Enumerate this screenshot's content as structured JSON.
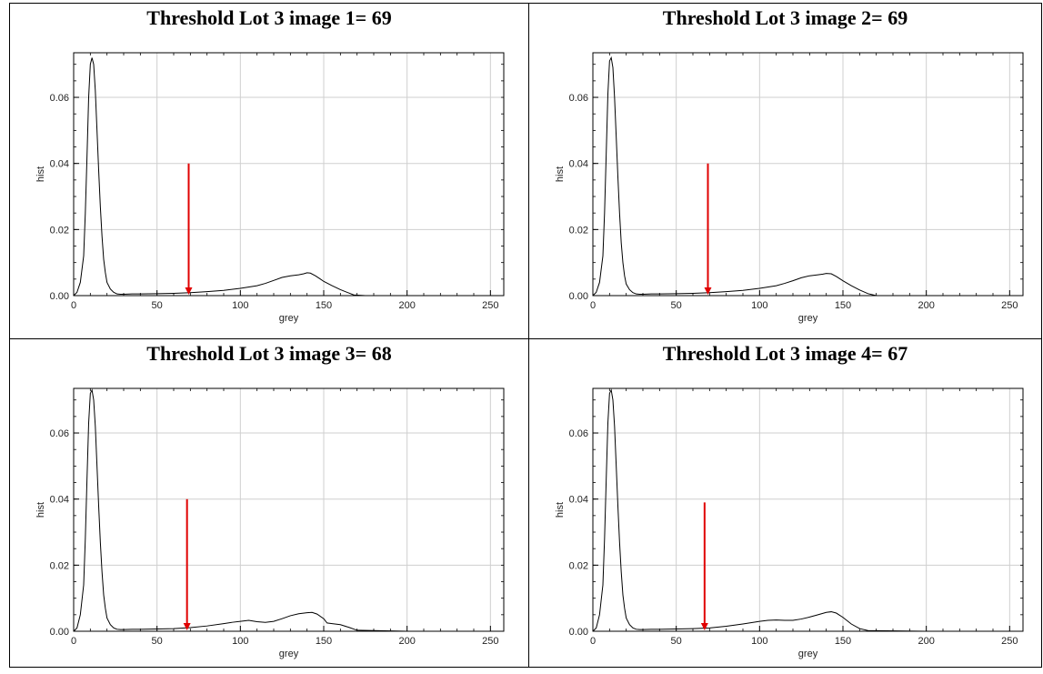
{
  "chart_data": [
    {
      "type": "line",
      "title": "Threshold Lot 3 image 1= 69",
      "xlabel": "grey",
      "ylabel": "hist",
      "xlim": [
        0,
        258
      ],
      "ylim": [
        0,
        0.0735
      ],
      "xticks": [
        "0",
        "50",
        "100",
        "150",
        "200",
        "250"
      ],
      "yticks": [
        "0.00",
        "0.02",
        "0.04",
        "0.06"
      ],
      "grid": true,
      "threshold_arrow": {
        "x": 69,
        "from_y": 0.04,
        "to_y": 0.0
      },
      "series": [
        {
          "x": [
            0,
            2,
            4,
            6,
            7,
            8,
            9,
            10,
            11,
            12,
            13,
            14,
            15,
            16,
            17,
            18,
            19,
            20,
            22,
            24,
            26,
            28,
            30,
            35,
            40,
            50,
            60,
            70,
            80,
            90,
            100,
            110,
            115,
            120,
            125,
            130,
            135,
            138,
            140,
            142,
            145,
            148,
            150,
            155,
            160,
            165,
            168,
            175,
            200,
            258
          ],
          "y": [
            0,
            0.001,
            0.004,
            0.012,
            0.025,
            0.042,
            0.06,
            0.07,
            0.072,
            0.07,
            0.062,
            0.05,
            0.038,
            0.027,
            0.018,
            0.011,
            0.007,
            0.004,
            0.002,
            0.001,
            0.0005,
            0.0004,
            0.0004,
            0.0005,
            0.0005,
            0.0006,
            0.0007,
            0.0009,
            0.0012,
            0.0016,
            0.0022,
            0.003,
            0.0037,
            0.0046,
            0.0055,
            0.006,
            0.0063,
            0.0066,
            0.0069,
            0.0068,
            0.006,
            0.005,
            0.0043,
            0.003,
            0.0018,
            0.0008,
            0.0002,
            0,
            0,
            0
          ]
        }
      ]
    },
    {
      "type": "line",
      "title": "Threshold Lot 3 image 2= 69",
      "xlabel": "grey",
      "ylabel": "hist",
      "xlim": [
        0,
        258
      ],
      "ylim": [
        0,
        0.0735
      ],
      "xticks": [
        "0",
        "50",
        "100",
        "150",
        "200",
        "250"
      ],
      "yticks": [
        "0.00",
        "0.02",
        "0.04",
        "0.06"
      ],
      "grid": true,
      "threshold_arrow": {
        "x": 69,
        "from_y": 0.04,
        "to_y": 0.0
      },
      "series": [
        {
          "x": [
            0,
            2,
            4,
            6,
            7,
            8,
            9,
            10,
            11,
            12,
            13,
            14,
            15,
            16,
            17,
            18,
            19,
            20,
            22,
            24,
            26,
            28,
            30,
            35,
            40,
            50,
            60,
            70,
            80,
            90,
            100,
            110,
            115,
            120,
            125,
            130,
            135,
            138,
            140,
            143,
            146,
            150,
            155,
            160,
            165,
            170,
            200,
            258
          ],
          "y": [
            0,
            0.001,
            0.004,
            0.012,
            0.025,
            0.043,
            0.061,
            0.071,
            0.072,
            0.069,
            0.06,
            0.048,
            0.036,
            0.025,
            0.016,
            0.01,
            0.006,
            0.0035,
            0.0018,
            0.0009,
            0.0005,
            0.0004,
            0.0004,
            0.0005,
            0.0005,
            0.0006,
            0.0007,
            0.0009,
            0.0012,
            0.0016,
            0.0022,
            0.003,
            0.0037,
            0.0045,
            0.0054,
            0.006,
            0.0063,
            0.0065,
            0.0067,
            0.0066,
            0.0058,
            0.0045,
            0.003,
            0.0017,
            0.0006,
            0,
            0,
            0
          ]
        }
      ]
    },
    {
      "type": "line",
      "title": "Threshold Lot 3 image 3= 68",
      "xlabel": "grey",
      "ylabel": "hist",
      "xlim": [
        0,
        258
      ],
      "ylim": [
        0,
        0.0735
      ],
      "xticks": [
        "0",
        "50",
        "100",
        "150",
        "200",
        "250"
      ],
      "yticks": [
        "0.00",
        "0.02",
        "0.04",
        "0.06"
      ],
      "grid": true,
      "threshold_arrow": {
        "x": 68,
        "from_y": 0.04,
        "to_y": 0.0
      },
      "series": [
        {
          "x": [
            0,
            2,
            4,
            6,
            7,
            8,
            9,
            10,
            11,
            12,
            13,
            14,
            15,
            16,
            17,
            18,
            19,
            20,
            22,
            24,
            26,
            28,
            30,
            35,
            40,
            50,
            60,
            70,
            80,
            90,
            95,
            100,
            105,
            110,
            115,
            120,
            125,
            130,
            135,
            140,
            143,
            146,
            150,
            152,
            155,
            160,
            165,
            170,
            200,
            258
          ],
          "y": [
            0,
            0.001,
            0.005,
            0.014,
            0.028,
            0.046,
            0.063,
            0.072,
            0.073,
            0.07,
            0.062,
            0.05,
            0.038,
            0.027,
            0.018,
            0.011,
            0.007,
            0.004,
            0.002,
            0.001,
            0.0006,
            0.0005,
            0.0005,
            0.0006,
            0.0006,
            0.0007,
            0.0008,
            0.0011,
            0.0016,
            0.0023,
            0.0027,
            0.003,
            0.0033,
            0.0029,
            0.0027,
            0.003,
            0.0038,
            0.0047,
            0.0053,
            0.0056,
            0.0057,
            0.0052,
            0.0038,
            0.0025,
            0.0023,
            0.002,
            0.0012,
            0.0003,
            0,
            0
          ]
        }
      ]
    },
    {
      "type": "line",
      "title": "Threshold Lot 3 image 4= 67",
      "xlabel": "grey",
      "ylabel": "hist",
      "xlim": [
        0,
        258
      ],
      "ylim": [
        0,
        0.0735
      ],
      "xticks": [
        "0",
        "50",
        "100",
        "150",
        "200",
        "250"
      ],
      "yticks": [
        "0.00",
        "0.02",
        "0.04",
        "0.06"
      ],
      "grid": true,
      "threshold_arrow": {
        "x": 67,
        "from_y": 0.039,
        "to_y": 0.0
      },
      "series": [
        {
          "x": [
            0,
            2,
            4,
            6,
            7,
            8,
            9,
            10,
            11,
            12,
            13,
            14,
            15,
            16,
            17,
            18,
            19,
            20,
            22,
            24,
            26,
            28,
            30,
            35,
            40,
            50,
            60,
            70,
            80,
            90,
            100,
            105,
            110,
            115,
            120,
            125,
            130,
            135,
            140,
            143,
            146,
            150,
            155,
            160,
            165,
            200,
            258
          ],
          "y": [
            0,
            0.001,
            0.005,
            0.014,
            0.028,
            0.046,
            0.063,
            0.072,
            0.073,
            0.07,
            0.062,
            0.05,
            0.038,
            0.027,
            0.018,
            0.011,
            0.007,
            0.004,
            0.002,
            0.001,
            0.0006,
            0.0005,
            0.0005,
            0.0006,
            0.0006,
            0.0007,
            0.0008,
            0.001,
            0.0015,
            0.0022,
            0.003,
            0.0033,
            0.0034,
            0.0033,
            0.0033,
            0.0037,
            0.0043,
            0.005,
            0.0057,
            0.0059,
            0.0055,
            0.0042,
            0.0022,
            0.0008,
            0.0002,
            0,
            0
          ]
        }
      ]
    }
  ]
}
